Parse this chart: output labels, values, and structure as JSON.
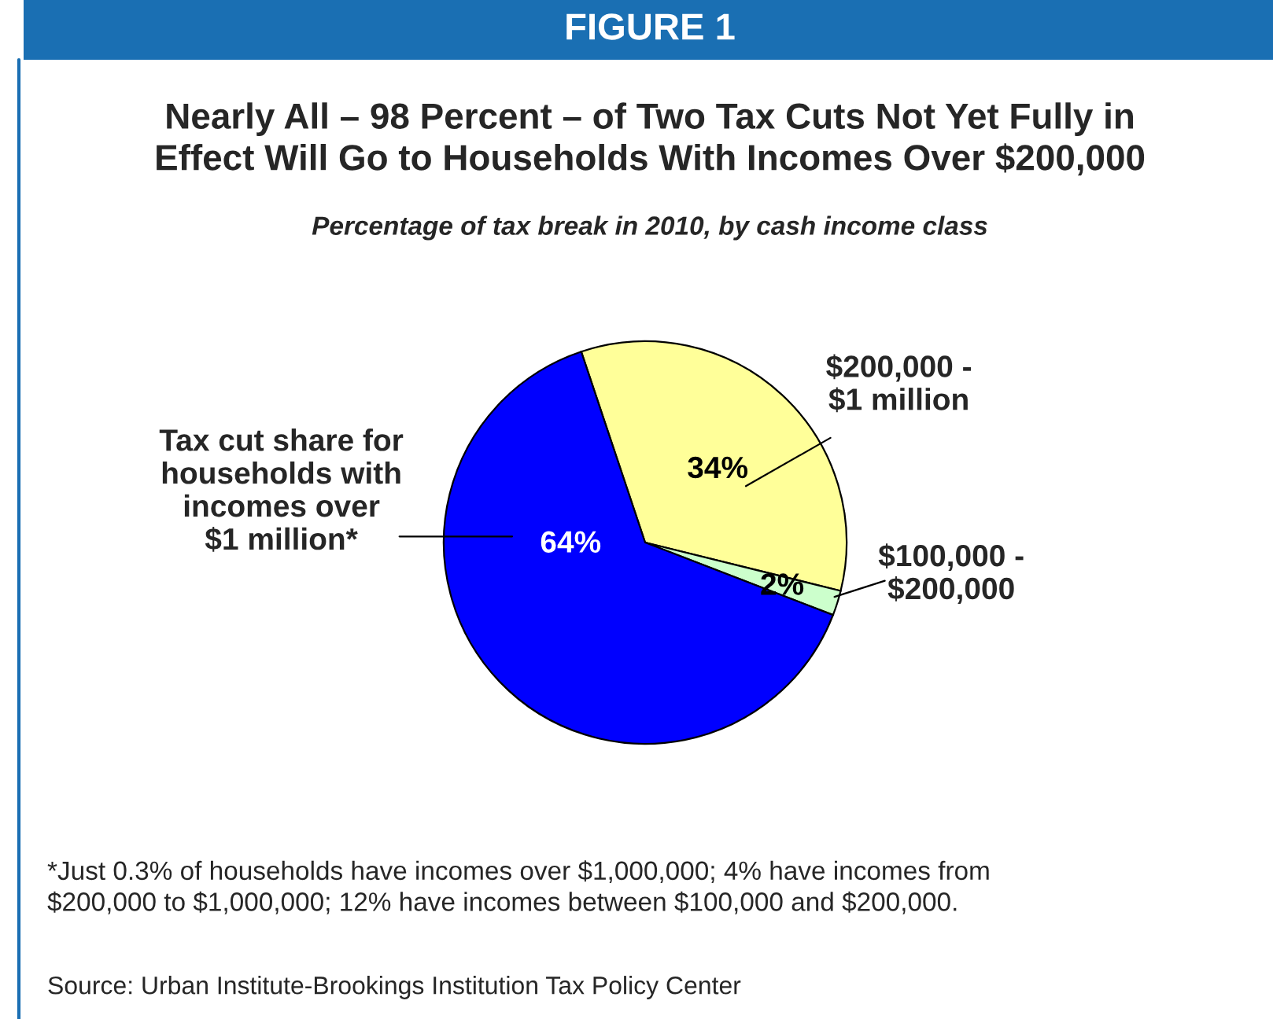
{
  "chart_data": {
    "type": "pie",
    "title": "Nearly All – 98 Percent – of Two Tax Cuts Not Yet Fully in\nEffect Will Go to Households With Incomes Over $200,000",
    "subtitle": "Percentage of tax break in 2010, by cash income class",
    "categories": [
      "$200,000 -\n$1 million",
      "$100,000 -\n$200,000",
      "Tax cut share for\nhouseholds with\nincomes over\n$1 million*"
    ],
    "values": [
      34,
      2,
      64
    ],
    "value_labels": [
      "34%",
      "2%",
      "64%"
    ],
    "colors": [
      "#ffff99",
      "#ccffcc",
      "#0000ff"
    ],
    "annotations": [
      "FIGURE 1",
      "*Just 0.3% of households have incomes over $1,000,000; 4% have incomes from\n$200,000 to $1,000,000; 12% have incomes between $100,000 and $200,000.",
      "Source: Urban Institute-Brookings Institution Tax Policy Center"
    ]
  }
}
